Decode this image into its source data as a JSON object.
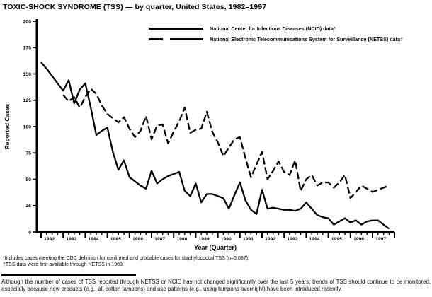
{
  "title": "TOXIC-SHOCK SYNDROME (TSS) — by quarter, United States, 1982–1997",
  "legend": {
    "items": [
      {
        "key": "ncid",
        "style": "solid",
        "label": "National Center for Infectious Diseases (NCID) data*"
      },
      {
        "key": "netss",
        "style": "dashed",
        "label": "National Electronic Telecommunications System for Surveillance (NETSS) data†"
      }
    ]
  },
  "chart_data": {
    "type": "line",
    "title": "TOXIC-SHOCK SYNDROME (TSS) — by quarter, United States, 1982–1997",
    "xlabel": "Year (Quarter)",
    "ylabel": "Reported Cases",
    "ylim": [
      0,
      200
    ],
    "yticks": [
      0,
      25,
      50,
      75,
      100,
      125,
      150,
      175,
      200
    ],
    "years": [
      1982,
      1983,
      1984,
      1985,
      1986,
      1987,
      1988,
      1989,
      1990,
      1991,
      1992,
      1993,
      1994,
      1995,
      1996,
      1997
    ],
    "x_unit": "quarter",
    "quarters_per_year": 4,
    "grid": false,
    "legend_position": "top-center",
    "line_color": "#000000",
    "series": [
      {
        "key": "ncid",
        "name": "National Center for Infectious Diseases (NCID) data*",
        "line": "solid",
        "start_year": 1982,
        "start_quarter": 1,
        "values": [
          161,
          155,
          148,
          141,
          134,
          144,
          122,
          135,
          141,
          118,
          92,
          96,
          99,
          76,
          59,
          68,
          52,
          48,
          44,
          41,
          58,
          46,
          50,
          53,
          55,
          57,
          39,
          34,
          46,
          28,
          36,
          36,
          34,
          32,
          22,
          35,
          47,
          30,
          21,
          17,
          40,
          22,
          23,
          22,
          21,
          21,
          20,
          22,
          28,
          22,
          16,
          14,
          13,
          7,
          10,
          13,
          9,
          11,
          7,
          10,
          11,
          11,
          7,
          3
        ]
      },
      {
        "key": "netss",
        "name": "National Electronic Telecommunications System for Surveillance (NETSS) data†",
        "line": "dashed",
        "start_year": 1983,
        "start_quarter": 1,
        "values": [
          130,
          124,
          128,
          118,
          128,
          136,
          131,
          120,
          112,
          108,
          104,
          109,
          98,
          90,
          96,
          110,
          88,
          101,
          102,
          84,
          95,
          105,
          118,
          94,
          97,
          98,
          114,
          95,
          85,
          72,
          80,
          88,
          90,
          70,
          52,
          64,
          76,
          50,
          58,
          67,
          57,
          54,
          68,
          39,
          50,
          54,
          44,
          47,
          47,
          42,
          47,
          54,
          32,
          38,
          44,
          41,
          38,
          40,
          42,
          44
        ]
      }
    ]
  },
  "footnotes": [
    "*Includes cases meeting the CDC definition for confirmed and probable cases for staphylococcal TSS (n=5,087).",
    "†TSS data were first available through NETSS in 1983."
  ],
  "note": "Although the number of cases of TSS reported through NETSS or NCID has not changed significantly over the last 5 years, trends of TSS should continue to be monitored, especially because new products (e.g., all-cotton tampons) and use patterns (e.g., using tampons overnight) have been introduced recently."
}
